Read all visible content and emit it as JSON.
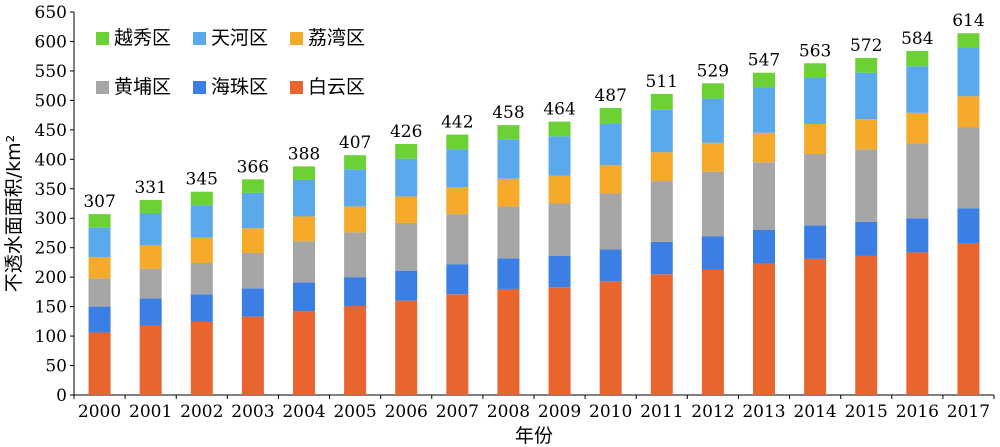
{
  "chart_data": {
    "type": "bar",
    "stacked": true,
    "title": "",
    "xlabel": "年份",
    "ylabel": "不透水面面积/km²",
    "ylim": [
      0,
      650
    ],
    "yticks": [
      0,
      50,
      100,
      150,
      200,
      250,
      300,
      350,
      400,
      450,
      500,
      550,
      600,
      650
    ],
    "grid": false,
    "legend_position": "top-left",
    "categories": [
      "2000",
      "2001",
      "2002",
      "2003",
      "2004",
      "2005",
      "2006",
      "2007",
      "2008",
      "2009",
      "2010",
      "2011",
      "2012",
      "2013",
      "2014",
      "2015",
      "2016",
      "2017"
    ],
    "totals": [
      307,
      331,
      345,
      366,
      388,
      407,
      426,
      442,
      458,
      464,
      487,
      511,
      529,
      547,
      563,
      572,
      584,
      614
    ],
    "series": [
      {
        "name": "白云区",
        "color": "#e86530",
        "values": [
          106,
          118,
          124,
          133,
          142,
          151,
          160,
          171,
          180,
          183,
          193,
          205,
          213,
          223,
          231,
          236,
          242,
          258
        ]
      },
      {
        "name": "海珠区",
        "color": "#3c7fe4",
        "values": [
          44,
          46,
          47,
          48,
          49,
          49,
          51,
          51,
          52,
          53,
          54,
          55,
          56,
          57,
          57,
          58,
          58,
          59
        ]
      },
      {
        "name": "黄埔区",
        "color": "#a6a6a6",
        "values": [
          48,
          50,
          53,
          60,
          70,
          76,
          81,
          85,
          88,
          89,
          95,
          103,
          110,
          115,
          121,
          123,
          127,
          137
        ]
      },
      {
        "name": "荔湾区",
        "color": "#f5aa2b",
        "values": [
          36,
          40,
          43,
          42,
          42,
          44,
          45,
          46,
          47,
          47,
          48,
          49,
          49,
          50,
          51,
          51,
          52,
          53
        ]
      },
      {
        "name": "天河区",
        "color": "#5aa9ec",
        "values": [
          50,
          55,
          55,
          60,
          62,
          63,
          64,
          64,
          67,
          67,
          70,
          72,
          75,
          77,
          78,
          79,
          79,
          82
        ]
      },
      {
        "name": "越秀区",
        "color": "#6cd134",
        "values": [
          23,
          22,
          23,
          23,
          23,
          24,
          25,
          25,
          24,
          25,
          27,
          27,
          26,
          25,
          25,
          25,
          26,
          25
        ]
      }
    ],
    "legend_order": [
      "越秀区",
      "天河区",
      "荔湾区",
      "黄埔区",
      "海珠区",
      "白云区"
    ]
  }
}
